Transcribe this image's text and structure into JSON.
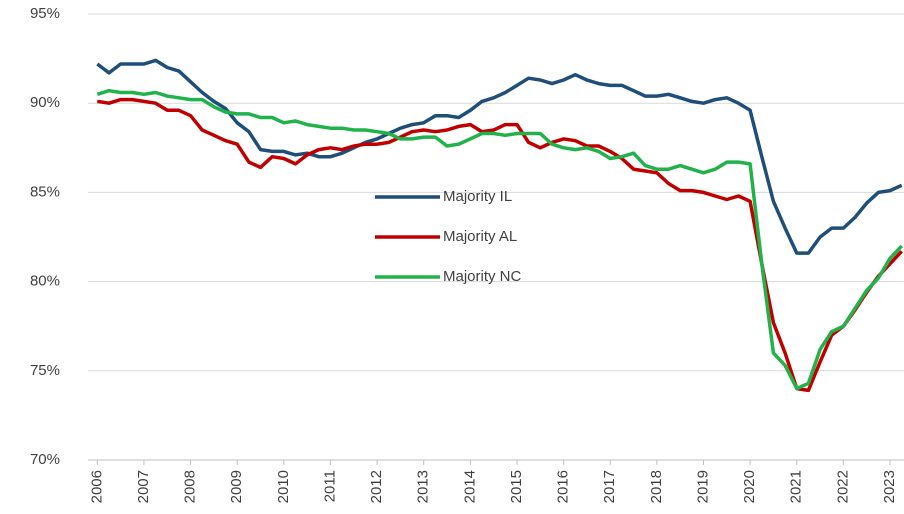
{
  "chart_data": {
    "type": "line",
    "x": [
      2006,
      2006.25,
      2006.5,
      2006.75,
      2007,
      2007.25,
      2007.5,
      2007.75,
      2008,
      2008.25,
      2008.5,
      2008.75,
      2009,
      2009.25,
      2009.5,
      2009.75,
      2010,
      2010.25,
      2010.5,
      2010.75,
      2011,
      2011.25,
      2011.5,
      2011.75,
      2012,
      2012.25,
      2012.5,
      2012.75,
      2013,
      2013.25,
      2013.5,
      2013.75,
      2014,
      2014.25,
      2014.5,
      2014.75,
      2015,
      2015.25,
      2015.5,
      2015.75,
      2016,
      2016.25,
      2016.5,
      2016.75,
      2017,
      2017.25,
      2017.5,
      2017.75,
      2018,
      2018.25,
      2018.5,
      2018.75,
      2019,
      2019.25,
      2019.5,
      2019.75,
      2020,
      2020.25,
      2020.5,
      2020.75,
      2021,
      2021.25,
      2021.5,
      2021.75,
      2022,
      2022.25,
      2022.5,
      2022.75,
      2023,
      2023.25
    ],
    "series": [
      {
        "name": "Majority IL",
        "color": "#1f4e79",
        "values": [
          92.2,
          91.7,
          92.2,
          92.2,
          92.2,
          92.4,
          92.0,
          91.8,
          91.2,
          90.6,
          90.1,
          89.7,
          88.9,
          88.4,
          87.4,
          87.3,
          87.3,
          87.1,
          87.2,
          87.0,
          87.0,
          87.2,
          87.5,
          87.8,
          88.0,
          88.3,
          88.6,
          88.8,
          88.9,
          89.3,
          89.3,
          89.2,
          89.6,
          90.1,
          90.3,
          90.6,
          91.0,
          91.4,
          91.3,
          91.1,
          91.3,
          91.6,
          91.3,
          91.1,
          91.0,
          91.0,
          90.7,
          90.4,
          90.4,
          90.5,
          90.3,
          90.1,
          90.0,
          90.2,
          90.3,
          90.0,
          89.6,
          87.0,
          84.5,
          83.0,
          81.6,
          81.6,
          82.5,
          83.0,
          83.0,
          83.6,
          84.4,
          85.0,
          85.1,
          85.4
        ]
      },
      {
        "name": "Majority AL",
        "color": "#c00000",
        "values": [
          90.1,
          90.0,
          90.2,
          90.2,
          90.1,
          90.0,
          89.6,
          89.6,
          89.3,
          88.5,
          88.2,
          87.9,
          87.7,
          86.7,
          86.4,
          87.0,
          86.9,
          86.6,
          87.1,
          87.4,
          87.5,
          87.4,
          87.6,
          87.7,
          87.7,
          87.8,
          88.1,
          88.4,
          88.5,
          88.4,
          88.5,
          88.7,
          88.8,
          88.4,
          88.5,
          88.8,
          88.8,
          87.8,
          87.5,
          87.8,
          88.0,
          87.9,
          87.6,
          87.6,
          87.3,
          86.9,
          86.3,
          86.2,
          86.1,
          85.5,
          85.1,
          85.1,
          85.0,
          84.8,
          84.6,
          84.8,
          84.5,
          81.0,
          77.7,
          76.0,
          74.0,
          73.9,
          75.5,
          77.0,
          77.5,
          78.4,
          79.4,
          80.3,
          81.0,
          81.7
        ]
      },
      {
        "name": "Majority NC",
        "color": "#21b24b",
        "values": [
          90.5,
          90.7,
          90.6,
          90.6,
          90.5,
          90.6,
          90.4,
          90.3,
          90.2,
          90.2,
          89.8,
          89.5,
          89.4,
          89.4,
          89.2,
          89.2,
          88.9,
          89.0,
          88.8,
          88.7,
          88.6,
          88.6,
          88.5,
          88.5,
          88.4,
          88.3,
          88.0,
          88.0,
          88.1,
          88.1,
          87.6,
          87.7,
          88.0,
          88.3,
          88.3,
          88.2,
          88.3,
          88.3,
          88.3,
          87.7,
          87.5,
          87.4,
          87.5,
          87.3,
          86.9,
          87.0,
          87.2,
          86.5,
          86.3,
          86.3,
          86.5,
          86.3,
          86.1,
          86.3,
          86.7,
          86.7,
          86.6,
          81.0,
          76.0,
          75.3,
          74.0,
          74.3,
          76.2,
          77.2,
          77.5,
          78.5,
          79.5,
          80.2,
          81.3,
          82.0
        ]
      }
    ],
    "xlim": [
      2005.8,
      2023.3
    ],
    "xticks": [
      2006,
      2007,
      2008,
      2009,
      2010,
      2011,
      2012,
      2013,
      2014,
      2015,
      2016,
      2017,
      2018,
      2019,
      2020,
      2021,
      2022,
      2023
    ],
    "ylim": [
      70,
      95
    ],
    "yticks": [
      {
        "value": 70,
        "label": "70%"
      },
      {
        "value": 75,
        "label": "75%"
      },
      {
        "value": 80,
        "label": "80%"
      },
      {
        "value": 85,
        "label": "85%"
      },
      {
        "value": 90,
        "label": "90%"
      },
      {
        "value": 95,
        "label": "95%"
      }
    ],
    "grid": true,
    "legend": "center"
  }
}
